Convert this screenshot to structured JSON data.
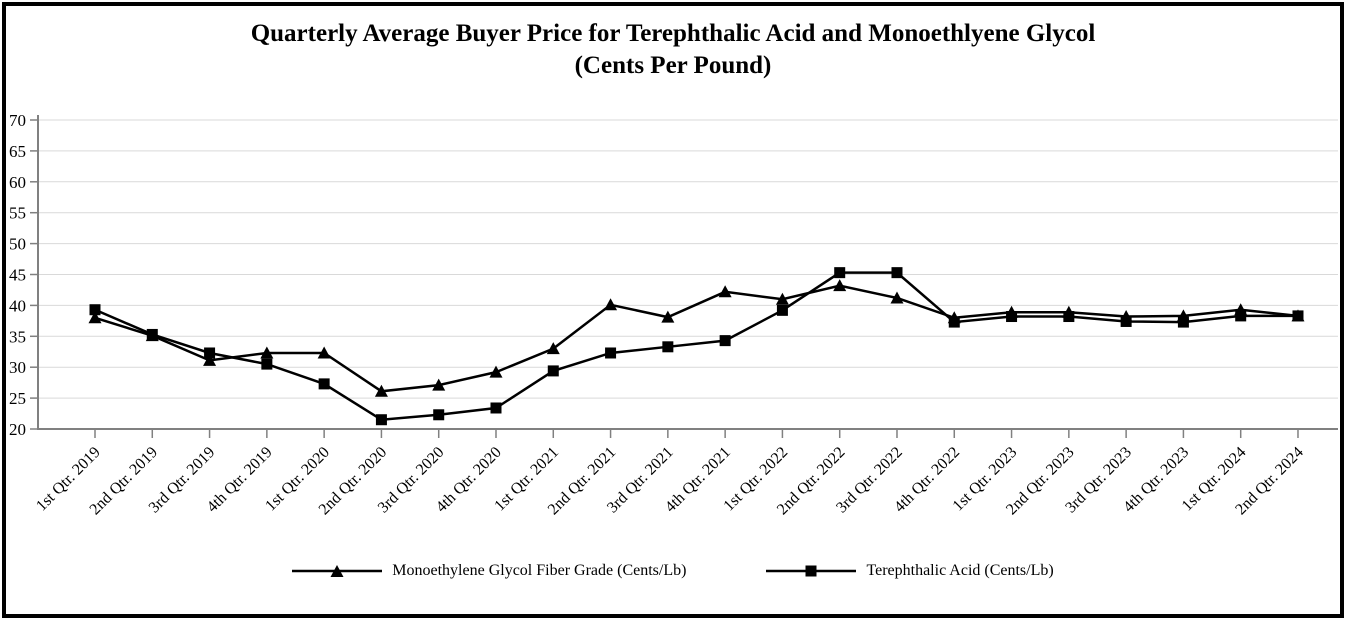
{
  "title": {
    "line1": "Quarterly Average Buyer Price for Terephthalic Acid and Monoethlyene Glycol",
    "line2": "(Cents Per Pound)"
  },
  "chart_data": {
    "type": "line",
    "title": "Quarterly Average Buyer Price for Terephthalic Acid and Monoethlyene Glycol (Cents Per Pound)",
    "categories": [
      "1st Qtr. 2019",
      "2nd Qtr. 2019",
      "3rd Qtr. 2019",
      "4th Qtr. 2019",
      "1st Qtr. 2020",
      "2nd Qtr. 2020",
      "3rd Qtr. 2020",
      "4th Qtr. 2020",
      "1st Qtr. 2021",
      "2nd Qtr. 2021",
      "3rd Qtr. 2021",
      "4th Qtr. 2021",
      "1st Qtr. 2022",
      "2nd Qtr. 2022",
      "3rd Qtr. 2022",
      "4th Qtr. 2022",
      "1st Qtr. 2023",
      "2nd Qtr. 2023",
      "3rd Qtr. 2023",
      "4th Qtr. 2023",
      "1st Qtr. 2024",
      "2nd Qtr. 2024"
    ],
    "series": [
      {
        "name": "Monoethylene Glycol Fiber Grade (Cents/Lb)",
        "marker": "triangle",
        "color": "#000000",
        "values": [
          38.0,
          35.1,
          31.1,
          32.3,
          32.3,
          26.1,
          27.1,
          29.2,
          33.0,
          40.1,
          38.1,
          42.2,
          41.0,
          43.2,
          41.2,
          38.0,
          38.9,
          38.9,
          38.2,
          38.3,
          39.3,
          38.3
        ]
      },
      {
        "name": "Terephthalic Acid (Cents/Lb)",
        "marker": "square",
        "color": "#000000",
        "values": [
          39.3,
          35.3,
          32.3,
          30.5,
          27.3,
          21.5,
          22.3,
          23.4,
          29.4,
          32.3,
          33.3,
          34.3,
          39.2,
          45.3,
          45.3,
          37.3,
          38.2,
          38.2,
          37.4,
          37.3,
          38.3,
          38.3
        ]
      }
    ],
    "xlabel": "",
    "ylabel": "",
    "ylim": [
      20,
      70
    ],
    "y_ticks": [
      70,
      65,
      60,
      55,
      50,
      45,
      40,
      35,
      30,
      25,
      20
    ],
    "grid": "horizontal",
    "legend_position": "bottom",
    "axis_color": "#808080",
    "gridline_color": "#d9d9d9"
  }
}
